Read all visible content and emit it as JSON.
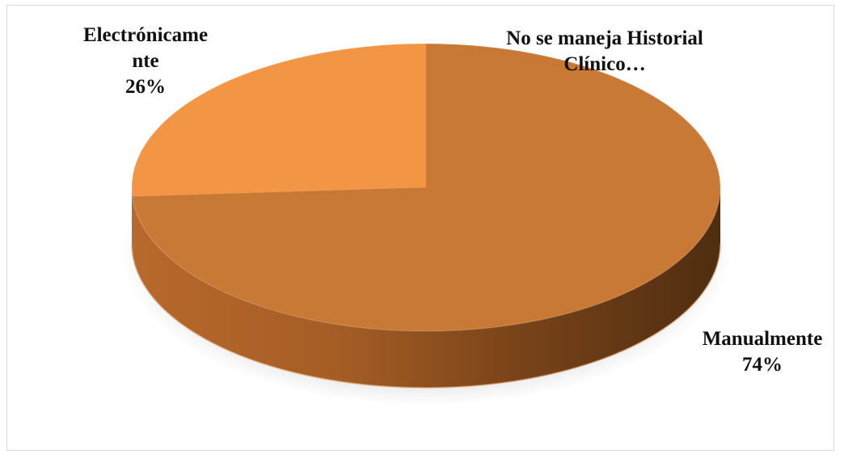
{
  "chart_data": {
    "type": "pie",
    "title": "",
    "three_d": true,
    "slices": [
      {
        "category": "Electrónicamente",
        "label_lines": [
          "Electrónicame",
          "nte"
        ],
        "value": 26,
        "pct_label": "26%",
        "color": "#f29544"
      },
      {
        "category": "Manualmente",
        "label_lines": [
          "Manualmente"
        ],
        "value": 74,
        "pct_label": "74%",
        "color": "#c97936"
      },
      {
        "category": "No se maneja Historial Clínico…",
        "label_lines": [
          "No se maneja Historial",
          "Clínico…"
        ],
        "value": 0,
        "pct_label": "",
        "color": "#a9a9a9"
      }
    ],
    "side_color": "#b8692c",
    "side_shadow_color": "#4f2d10",
    "legend": "none"
  }
}
